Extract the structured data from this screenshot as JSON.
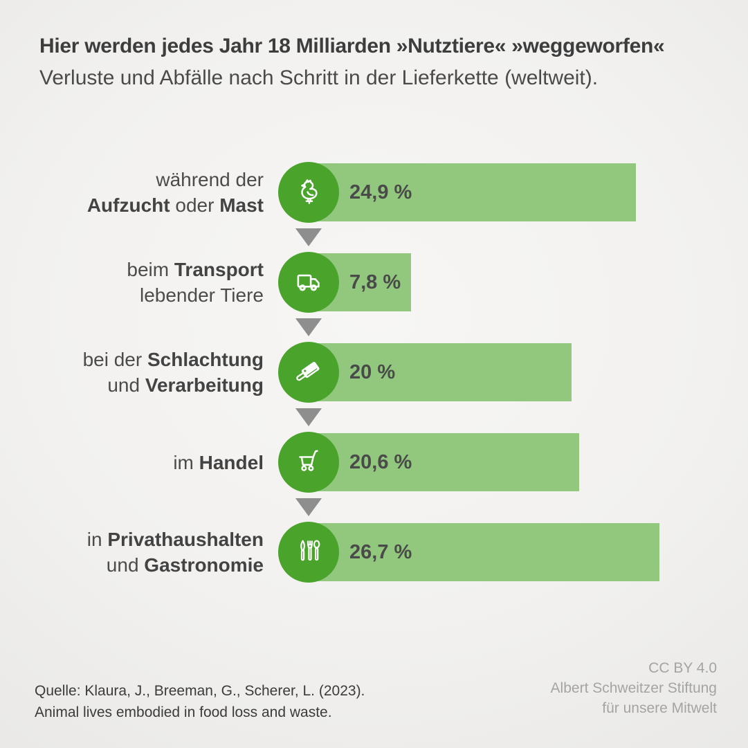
{
  "title": {
    "line1": "Hier werden jedes Jahr 18 Milliarden »Nutztiere« »weggeworfen«",
    "line2": "Verluste und Abfälle nach Schritt in der Lieferkette (weltweit)."
  },
  "chart_data": {
    "type": "bar",
    "orientation": "horizontal",
    "title": "Hier werden jedes Jahr 18 Milliarden »Nutztiere« »weggeworfen«",
    "subtitle": "Verluste und Abfälle nach Schritt in der Lieferkette (weltweit).",
    "unit": "%",
    "xlim": [
      0,
      30
    ],
    "grid": false,
    "legend": "none",
    "categories": [
      "während der Aufzucht oder Mast",
      "beim Transport lebender Tiere",
      "bei der Schlachtung und Verarbeitung",
      "im Handel",
      "in Privathaushalten und Gastronomie"
    ],
    "values": [
      24.9,
      7.8,
      20,
      20.6,
      26.7
    ],
    "rows": [
      {
        "icon": "chicken-icon",
        "value": 24.9,
        "value_label": "24,9 %",
        "label_lines": [
          [
            {
              "text": "während der",
              "bold": false
            }
          ],
          [
            {
              "text": "Aufzucht",
              "bold": true
            },
            {
              "text": " oder ",
              "bold": false
            },
            {
              "text": "Mast",
              "bold": true
            }
          ]
        ]
      },
      {
        "icon": "truck-icon",
        "value": 7.8,
        "value_label": "7,8 %",
        "label_lines": [
          [
            {
              "text": "beim ",
              "bold": false
            },
            {
              "text": "Transport",
              "bold": true
            }
          ],
          [
            {
              "text": "lebender Tiere",
              "bold": false
            }
          ]
        ]
      },
      {
        "icon": "cleaver-icon",
        "value": 20,
        "value_label": "20 %",
        "label_lines": [
          [
            {
              "text": "bei der ",
              "bold": false
            },
            {
              "text": "Schlachtung",
              "bold": true
            }
          ],
          [
            {
              "text": "und ",
              "bold": false
            },
            {
              "text": "Verarbeitung",
              "bold": true
            }
          ]
        ]
      },
      {
        "icon": "cart-icon",
        "value": 20.6,
        "value_label": "20,6 %",
        "label_lines": [
          [
            {
              "text": "im ",
              "bold": false
            },
            {
              "text": "Handel",
              "bold": true
            }
          ]
        ]
      },
      {
        "icon": "cutlery-icon",
        "value": 26.7,
        "value_label": "26,7 %",
        "label_lines": [
          [
            {
              "text": "in ",
              "bold": false
            },
            {
              "text": "Privathaushalten",
              "bold": true
            }
          ],
          [
            {
              "text": "und ",
              "bold": false
            },
            {
              "text": "Gastronomie",
              "bold": true
            }
          ]
        ]
      }
    ]
  },
  "footer": {
    "source_line1": "Quelle: Klaura, J., Breeman, G., Scherer, L. (2023).",
    "source_line2": "Animal lives embodied in food loss and waste.",
    "license": "CC BY 4.0",
    "org_line1": "Albert Schweitzer Stiftung",
    "org_line2": "für unsere Mitwelt"
  },
  "colors": {
    "circle_green": "#4aa32b",
    "bar_green": "#92c87d",
    "arrow_gray": "#8e8e8e",
    "title_dark": "#3d3d3d",
    "text_dark": "#4b4b4b",
    "footer_right_gray": "#a5a4a2"
  }
}
